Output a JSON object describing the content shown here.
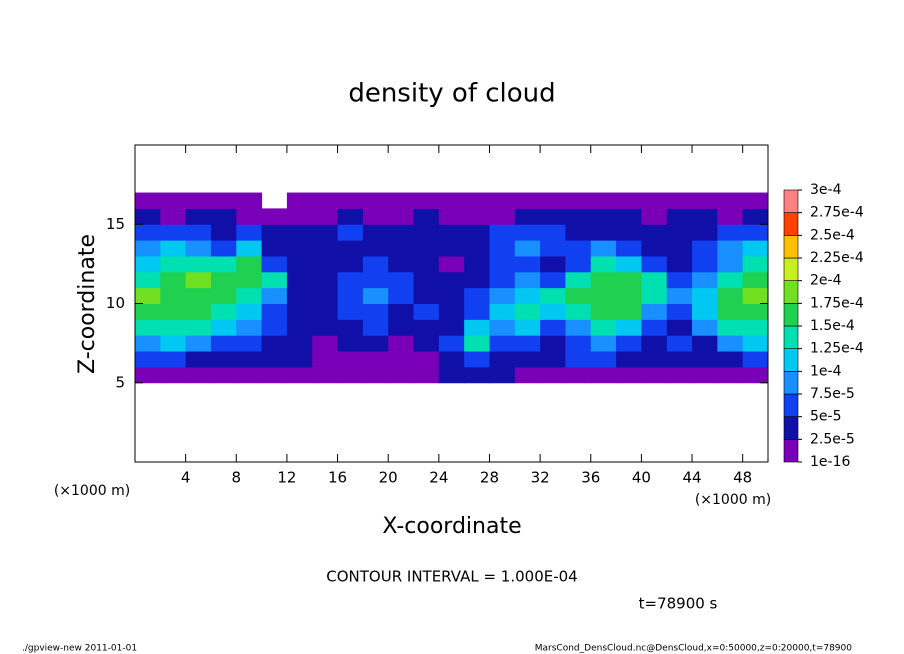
{
  "chart_data": {
    "type": "heatmap",
    "title": "density of cloud",
    "x_label": "X-coordinate",
    "y_label": "Z-coordinate",
    "x_unit": "(×1000 m)",
    "y_unit": "(×1000 m)",
    "annotation": "CONTOUR INTERVAL = 1.000E-04",
    "time_label": "t=78900 s",
    "footer_left": "./gpview-new   2011-01-01",
    "footer_right": "MarsCond_DensCloud.nc@DensCloud,x=0:50000,z=0:20000,t=78900",
    "xlim": [
      0,
      50
    ],
    "xticks": [
      4,
      8,
      12,
      16,
      20,
      24,
      28,
      32,
      36,
      40,
      44,
      48
    ],
    "ylim": [
      0,
      20
    ],
    "yticks": [
      5,
      10,
      15
    ],
    "x": [
      1,
      3,
      5,
      7,
      9,
      11,
      13,
      15,
      17,
      19,
      21,
      23,
      25,
      27,
      29,
      31,
      33,
      35,
      37,
      39,
      41,
      43,
      45,
      47,
      49
    ],
    "y": [
      5.5,
      6.5,
      7.5,
      8.5,
      9.5,
      10.5,
      11.5,
      12.5,
      13.5,
      14.5,
      15.5,
      16.5
    ],
    "values": [
      [
        1e-05,
        1e-05,
        1e-05,
        1e-05,
        1e-05,
        1e-05,
        1e-05,
        1e-05,
        1e-05,
        1e-05,
        1e-05,
        1e-05,
        3e-05,
        3e-05,
        3e-05,
        1e-05,
        1e-05,
        1e-05,
        1e-05,
        1e-05,
        1e-05,
        1e-05,
        1e-05,
        1e-05,
        1e-05
      ],
      [
        6e-05,
        6e-05,
        3e-05,
        3e-05,
        3e-05,
        3e-05,
        3e-05,
        1e-05,
        1e-05,
        1e-05,
        1e-05,
        1e-05,
        3e-05,
        6e-05,
        3e-05,
        3e-05,
        3e-05,
        6e-05,
        6e-05,
        3e-05,
        3e-05,
        3e-05,
        3e-05,
        3e-05,
        6e-05
      ],
      [
        9e-05,
        0.00011,
        9e-05,
        6e-05,
        6e-05,
        3e-05,
        3e-05,
        1e-05,
        3e-05,
        3e-05,
        1e-05,
        3e-05,
        6e-05,
        0.00014,
        6e-05,
        6e-05,
        3e-05,
        6e-05,
        9e-05,
        6e-05,
        3e-05,
        6e-05,
        3e-05,
        9e-05,
        0.00011
      ],
      [
        0.00014,
        0.00014,
        0.00014,
        0.00011,
        9e-05,
        6e-05,
        3e-05,
        3e-05,
        3e-05,
        6e-05,
        3e-05,
        3e-05,
        3e-05,
        0.00011,
        9e-05,
        0.00011,
        6e-05,
        9e-05,
        0.00014,
        0.00011,
        6e-05,
        3e-05,
        9e-05,
        0.00014,
        0.00014
      ],
      [
        0.00016,
        0.00016,
        0.00016,
        0.00014,
        0.00011,
        6e-05,
        3e-05,
        3e-05,
        6e-05,
        6e-05,
        3e-05,
        6e-05,
        3e-05,
        6e-05,
        0.00011,
        0.00014,
        0.00011,
        0.00014,
        0.00016,
        0.00016,
        9e-05,
        6e-05,
        0.00011,
        0.00016,
        0.00016
      ],
      [
        0.00018,
        0.00016,
        0.00016,
        0.00016,
        0.00014,
        9e-05,
        3e-05,
        3e-05,
        6e-05,
        9e-05,
        6e-05,
        3e-05,
        3e-05,
        6e-05,
        9e-05,
        0.00011,
        0.00014,
        0.00016,
        0.00016,
        0.00016,
        0.00014,
        9e-05,
        0.00011,
        0.00016,
        0.00018
      ],
      [
        0.00014,
        0.00016,
        0.00018,
        0.00016,
        0.00016,
        0.00014,
        3e-05,
        3e-05,
        6e-05,
        6e-05,
        6e-05,
        3e-05,
        3e-05,
        3e-05,
        6e-05,
        9e-05,
        6e-05,
        0.00014,
        0.00016,
        0.00016,
        0.00014,
        6e-05,
        9e-05,
        0.00014,
        0.00016
      ],
      [
        0.00011,
        0.00014,
        0.00014,
        0.00014,
        0.00016,
        6e-05,
        3e-05,
        3e-05,
        3e-05,
        6e-05,
        3e-05,
        3e-05,
        1e-05,
        3e-05,
        6e-05,
        6e-05,
        3e-05,
        6e-05,
        0.00014,
        0.00011,
        6e-05,
        3e-05,
        6e-05,
        9e-05,
        0.00014
      ],
      [
        9e-05,
        0.00011,
        9e-05,
        6e-05,
        0.00011,
        3e-05,
        3e-05,
        3e-05,
        3e-05,
        3e-05,
        3e-05,
        3e-05,
        3e-05,
        3e-05,
        6e-05,
        9e-05,
        6e-05,
        6e-05,
        9e-05,
        6e-05,
        3e-05,
        3e-05,
        6e-05,
        9e-05,
        0.00011
      ],
      [
        6e-05,
        6e-05,
        6e-05,
        3e-05,
        6e-05,
        3e-05,
        3e-05,
        3e-05,
        6e-05,
        3e-05,
        3e-05,
        3e-05,
        3e-05,
        3e-05,
        6e-05,
        6e-05,
        6e-05,
        3e-05,
        3e-05,
        3e-05,
        3e-05,
        3e-05,
        3e-05,
        6e-05,
        6e-05
      ],
      [
        3e-05,
        1e-05,
        3e-05,
        3e-05,
        1e-05,
        1e-05,
        1e-05,
        1e-05,
        3e-05,
        1e-05,
        1e-05,
        3e-05,
        1e-05,
        1e-05,
        1e-05,
        3e-05,
        3e-05,
        3e-05,
        3e-05,
        3e-05,
        1e-05,
        3e-05,
        3e-05,
        1e-05,
        3e-05
      ],
      [
        1e-05,
        1e-05,
        1e-05,
        1e-05,
        1e-05,
        null,
        1e-05,
        1e-05,
        1e-05,
        1e-05,
        1e-05,
        1e-05,
        1e-05,
        1e-05,
        1e-05,
        1e-05,
        1e-05,
        1e-05,
        1e-05,
        1e-05,
        1e-05,
        1e-05,
        1e-05,
        1e-05,
        1e-05
      ]
    ],
    "levels": [
      {
        "value": 1e-16,
        "label": "1e-16"
      },
      {
        "value": 2.5e-05,
        "label": "2.5e-5"
      },
      {
        "value": 5e-05,
        "label": "5e-5"
      },
      {
        "value": 7.5e-05,
        "label": "7.5e-5"
      },
      {
        "value": 0.0001,
        "label": "1e-4"
      },
      {
        "value": 0.000125,
        "label": "1.25e-4"
      },
      {
        "value": 0.00015,
        "label": "1.5e-4"
      },
      {
        "value": 0.000175,
        "label": "1.75e-4"
      },
      {
        "value": 0.0002,
        "label": "2e-4"
      },
      {
        "value": 0.000225,
        "label": "2.25e-4"
      },
      {
        "value": 0.00025,
        "label": "2.5e-4"
      },
      {
        "value": 0.000275,
        "label": "2.75e-4"
      },
      {
        "value": 0.0003,
        "label": "3e-4"
      }
    ],
    "colors": [
      "#7a00b8",
      "#1010a8",
      "#1040f0",
      "#1890ff",
      "#00c8f0",
      "#00e0b0",
      "#20d050",
      "#70e020",
      "#c8f020",
      "#ffc000",
      "#ff4000",
      "#ff8080"
    ]
  }
}
